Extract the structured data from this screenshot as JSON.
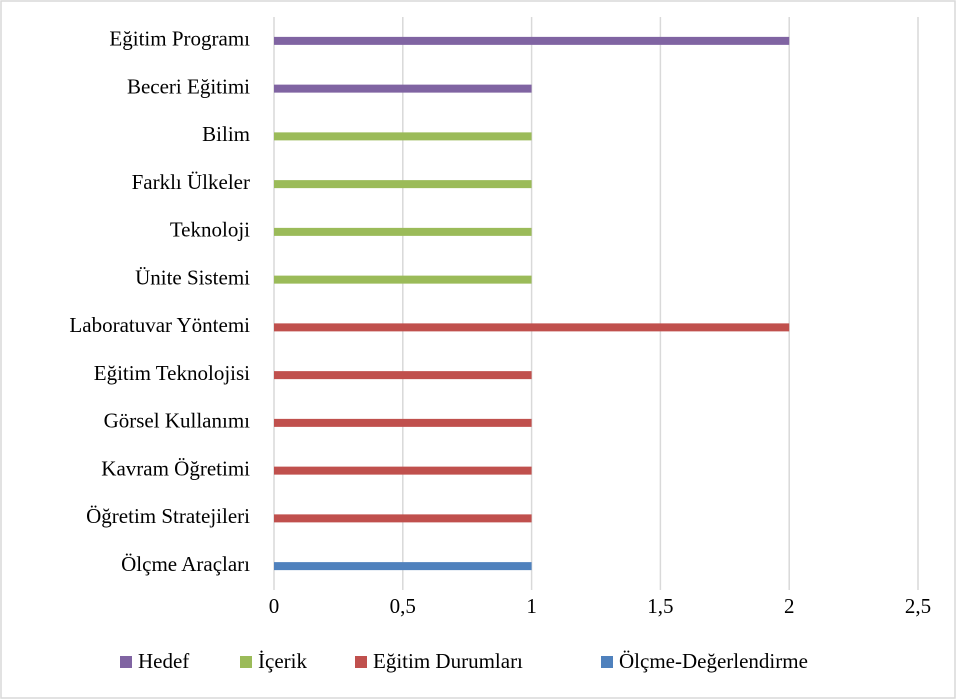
{
  "chart_data": {
    "type": "bar",
    "orientation": "horizontal",
    "categories": [
      "Eğitim Programı",
      "Beceri Eğitimi",
      "Bilim",
      "Farklı Ülkeler",
      "Teknoloji",
      "Ünite Sistemi",
      "Laboratuvar Yöntemi",
      "Eğitim Teknolojisi",
      "Görsel Kullanımı",
      "Kavram Öğretimi",
      "Öğretim Stratejileri",
      "Ölçme Araçları"
    ],
    "series": [
      {
        "name": "Hedef",
        "color": "#8064a2",
        "values": [
          2,
          1,
          null,
          null,
          null,
          null,
          null,
          null,
          null,
          null,
          null,
          null
        ]
      },
      {
        "name": "İçerik",
        "color": "#9bbb59",
        "values": [
          null,
          null,
          1,
          1,
          1,
          1,
          null,
          null,
          null,
          null,
          null,
          null
        ]
      },
      {
        "name": "Eğitim Durumları",
        "color": "#c0504d",
        "values": [
          null,
          null,
          null,
          null,
          null,
          null,
          2,
          1,
          1,
          1,
          1,
          null
        ]
      },
      {
        "name": "Ölçme-Değerlendirme",
        "color": "#4f81bd",
        "values": [
          null,
          null,
          null,
          null,
          null,
          null,
          null,
          null,
          null,
          null,
          null,
          1
        ]
      }
    ],
    "xlim": [
      0,
      2.5
    ],
    "xticks": [
      0,
      {
        "value": 0.5,
        "label": "0,5"
      },
      1,
      {
        "value": 1.5,
        "label": "1,5"
      },
      2,
      {
        "value": 2.5,
        "label": "2,5"
      }
    ],
    "grid": true,
    "legend": "bottom"
  }
}
